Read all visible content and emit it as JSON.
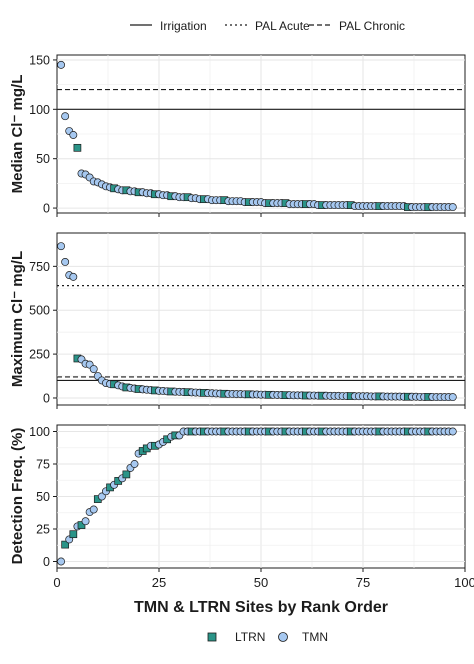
{
  "chart_data": {
    "type": "scatter",
    "xlabel": "TMN & LTRN Sites by Rank Order",
    "xlim": [
      0,
      100
    ],
    "x_ticks": [
      "0",
      "25",
      "50",
      "75",
      "100"
    ],
    "legend_top": {
      "placement": "top",
      "entries": [
        {
          "label": "Irrigation",
          "dash": "solid"
        },
        {
          "label": "PAL Acute",
          "dash": "dotted"
        },
        {
          "label": "PAL Chronic",
          "dash": "dashed"
        }
      ]
    },
    "legend_bottom": {
      "placement": "bottom",
      "entries": [
        {
          "label": "LTRN",
          "marker": "square",
          "color": "#2a9488"
        },
        {
          "label": "TMN",
          "marker": "circle",
          "color": "#a6c8f0"
        }
      ]
    },
    "colors": {
      "LTRN": "#2a9488",
      "TMN": "#a6c8f0",
      "stroke": "#1c1c1c",
      "grid": "#e6e6e6"
    },
    "panels": [
      {
        "id": "median",
        "ylabel": "Median Cl⁻ mg/L",
        "ylim": [
          -5,
          155
        ],
        "yticks": [
          0,
          50,
          100,
          150
        ],
        "ytick_labels": [
          "0",
          "50",
          "100",
          "150"
        ],
        "hlines": [
          {
            "label": "Irrigation",
            "y": 100,
            "dash": "solid"
          },
          {
            "label": "PAL Chronic",
            "y": 120,
            "dash": "dashed"
          }
        ]
      },
      {
        "id": "maximum",
        "ylabel": "Maximum Cl⁻ mg/L",
        "ylim": [
          -40,
          940
        ],
        "yticks": [
          0,
          250,
          500,
          750
        ],
        "ytick_labels": [
          "0",
          "250",
          "500",
          "750"
        ],
        "hlines": [
          {
            "label": "Irrigation",
            "y": 100,
            "dash": "solid"
          },
          {
            "label": "PAL Chronic",
            "y": 120,
            "dash": "dashed"
          },
          {
            "label": "PAL Acute",
            "y": 640,
            "dash": "dotted"
          }
        ]
      },
      {
        "id": "detection",
        "ylabel": "Detection Freq. (%)",
        "ylim": [
          -5,
          105
        ],
        "yticks": [
          0,
          25,
          50,
          75,
          100
        ],
        "ytick_labels": [
          "0",
          "25",
          "50",
          "75",
          "100"
        ],
        "hlines": []
      }
    ],
    "ltrn_ranks": [
      5,
      14,
      17,
      20,
      24,
      28,
      32,
      36,
      41,
      47,
      52,
      56,
      61,
      65,
      72,
      79,
      86,
      91
    ],
    "detection_ltrn_ranks": [
      2,
      4,
      6,
      10,
      13,
      15,
      17,
      21,
      22,
      24,
      27,
      29,
      33,
      36,
      41,
      47,
      52,
      56,
      61,
      65,
      72,
      79,
      86,
      91
    ],
    "series": [
      {
        "name": "Median",
        "x": [
          1,
          2,
          3,
          4,
          5,
          6,
          7,
          8,
          9,
          10,
          11,
          12,
          13,
          14,
          15,
          16,
          17,
          18,
          19,
          20,
          21,
          22,
          23,
          24,
          25,
          26,
          27,
          28,
          29,
          30,
          31,
          32,
          33,
          34,
          35,
          36,
          37,
          38,
          39,
          40,
          41,
          42,
          43,
          44,
          45,
          46,
          47,
          48,
          49,
          50,
          51,
          52,
          53,
          54,
          55,
          56,
          57,
          58,
          59,
          60,
          61,
          62,
          63,
          64,
          65,
          66,
          67,
          68,
          69,
          70,
          71,
          72,
          73,
          74,
          75,
          76,
          77,
          78,
          79,
          80,
          81,
          82,
          83,
          84,
          85,
          86,
          87,
          88,
          89,
          90,
          91,
          92,
          93,
          94,
          95,
          96,
          97
        ],
        "y": [
          145,
          93,
          78,
          74,
          61,
          35,
          34,
          31,
          27,
          26,
          24,
          22,
          21,
          20,
          19,
          18,
          18,
          17,
          17,
          16,
          16,
          15,
          15,
          14,
          14,
          13,
          13,
          12,
          12,
          11,
          11,
          11,
          10,
          10,
          9,
          9,
          9,
          8,
          8,
          8,
          8,
          7,
          7,
          7,
          7,
          6,
          6,
          6,
          6,
          6,
          5,
          5,
          5,
          5,
          5,
          5,
          4,
          4,
          4,
          4,
          4,
          4,
          4,
          3,
          3,
          3,
          3,
          3,
          3,
          3,
          3,
          3,
          2,
          2,
          2,
          2,
          2,
          2,
          2,
          2,
          2,
          2,
          2,
          2,
          2,
          1,
          1,
          1,
          1,
          1,
          1,
          1,
          1,
          1,
          1,
          1,
          1
        ]
      },
      {
        "name": "Maximum",
        "x": [
          1,
          2,
          3,
          4,
          5,
          6,
          7,
          8,
          9,
          10,
          11,
          12,
          13,
          14,
          15,
          16,
          17,
          18,
          19,
          20,
          21,
          22,
          23,
          24,
          25,
          26,
          27,
          28,
          29,
          30,
          31,
          32,
          33,
          34,
          35,
          36,
          37,
          38,
          39,
          40,
          41,
          42,
          43,
          44,
          45,
          46,
          47,
          48,
          49,
          50,
          51,
          52,
          53,
          54,
          55,
          56,
          57,
          58,
          59,
          60,
          61,
          62,
          63,
          64,
          65,
          66,
          67,
          68,
          69,
          70,
          71,
          72,
          73,
          74,
          75,
          76,
          77,
          78,
          79,
          80,
          81,
          82,
          83,
          84,
          85,
          86,
          87,
          88,
          89,
          90,
          91,
          92,
          93,
          94,
          95,
          96,
          97
        ],
        "y": [
          865,
          775,
          700,
          690,
          225,
          220,
          195,
          190,
          165,
          125,
          100,
          85,
          80,
          78,
          72,
          66,
          60,
          57,
          54,
          51,
          49,
          47,
          45,
          43,
          41,
          40,
          38,
          37,
          36,
          35,
          34,
          33,
          32,
          31,
          30,
          29,
          28,
          27,
          26,
          25,
          24,
          23,
          23,
          22,
          22,
          21,
          21,
          20,
          20,
          19,
          19,
          18,
          18,
          17,
          17,
          16,
          16,
          15,
          15,
          15,
          14,
          14,
          14,
          13,
          13,
          13,
          12,
          12,
          12,
          11,
          11,
          11,
          10,
          10,
          10,
          10,
          9,
          9,
          9,
          9,
          8,
          8,
          8,
          8,
          7,
          7,
          7,
          7,
          6,
          6,
          6,
          6,
          5,
          5,
          5,
          5,
          5
        ]
      },
      {
        "name": "Detection Freq.",
        "x": [
          1,
          2,
          3,
          4,
          5,
          6,
          7,
          8,
          9,
          10,
          11,
          12,
          13,
          14,
          15,
          16,
          17,
          18,
          19,
          20,
          21,
          22,
          23,
          24,
          25,
          26,
          27,
          28,
          29,
          30,
          31,
          32,
          33,
          34,
          35,
          36,
          37,
          38,
          39,
          40,
          41,
          42,
          43,
          44,
          45,
          46,
          47,
          48,
          49,
          50,
          51,
          52,
          53,
          54,
          55,
          56,
          57,
          58,
          59,
          60,
          61,
          62,
          63,
          64,
          65,
          66,
          67,
          68,
          69,
          70,
          71,
          72,
          73,
          74,
          75,
          76,
          77,
          78,
          79,
          80,
          81,
          82,
          83,
          84,
          85,
          86,
          87,
          88,
          89,
          90,
          91,
          92,
          93,
          94,
          95,
          96,
          97
        ],
        "y": [
          0,
          13,
          17,
          21,
          27,
          28,
          31,
          38,
          40,
          48,
          50,
          54,
          57,
          59,
          62,
          64,
          67,
          72,
          75,
          83,
          85,
          87,
          89,
          89,
          90,
          92,
          94,
          96,
          97,
          97,
          100,
          100,
          100,
          100,
          100,
          100,
          100,
          100,
          100,
          100,
          100,
          100,
          100,
          100,
          100,
          100,
          100,
          100,
          100,
          100,
          100,
          100,
          100,
          100,
          100,
          100,
          100,
          100,
          100,
          100,
          100,
          100,
          100,
          100,
          100,
          100,
          100,
          100,
          100,
          100,
          100,
          100,
          100,
          100,
          100,
          100,
          100,
          100,
          100,
          100,
          100,
          100,
          100,
          100,
          100,
          100,
          100,
          100,
          100,
          100,
          100,
          100,
          100,
          100,
          100,
          100,
          100
        ]
      }
    ]
  }
}
